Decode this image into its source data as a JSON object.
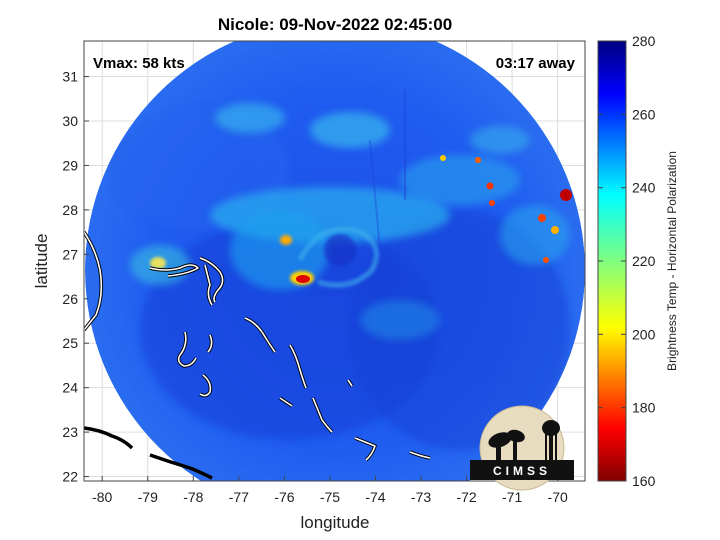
{
  "title": "Nicole: 09-Nov-2022 02:45:00",
  "vmax_text": "Vmax: 58 kts",
  "time_away_text": "03:17 away",
  "xlabel": "longitude",
  "ylabel": "latitude",
  "colorbar_label": "Brightness Temp - Horizontal Polarization",
  "logo_text": "CIMSS",
  "chart_data": {
    "type": "heatmap",
    "x_ticks": [
      -80,
      -79,
      -78,
      -77,
      -76,
      -75,
      -74,
      -73,
      -72,
      -71,
      -70
    ],
    "y_ticks": [
      22,
      23,
      24,
      25,
      26,
      27,
      28,
      29,
      30,
      31
    ],
    "xlim": [
      -80.4,
      -69.4
    ],
    "ylim": [
      21.9,
      31.8
    ],
    "grid": true,
    "colorbar": {
      "min": 160,
      "max": 280,
      "ticks": [
        160,
        180,
        200,
        220,
        240,
        260,
        280
      ]
    },
    "swath_center": {
      "lon": -75.0,
      "lat": 26.9
    },
    "storm_center": {
      "lon": -74.8,
      "lat": 26.9
    },
    "features": [
      {
        "name": "eyewall-hot-spot",
        "lon": -75.7,
        "lat": 26.4,
        "value": 190
      },
      {
        "name": "north-band-spot",
        "lon": -76.1,
        "lat": 27.3,
        "value": 200
      },
      {
        "name": "bahamas-band-spot",
        "lon": -78.9,
        "lat": 26.8,
        "value": 215
      },
      {
        "name": "east-cell-1",
        "lon": -69.8,
        "lat": 28.2,
        "value": 178
      },
      {
        "name": "east-cell-2",
        "lon": -70.2,
        "lat": 27.7,
        "value": 190
      },
      {
        "name": "east-cell-3",
        "lon": -71.4,
        "lat": 28.4,
        "value": 195
      },
      {
        "name": "east-cell-4",
        "lon": -70.3,
        "lat": 26.8,
        "value": 200
      }
    ]
  }
}
